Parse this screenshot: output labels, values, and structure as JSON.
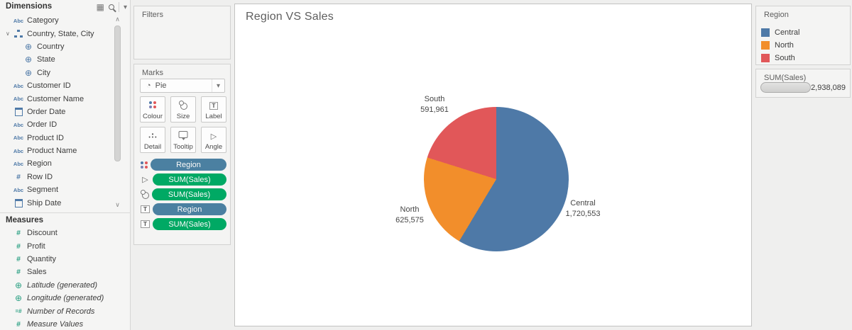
{
  "sidebar": {
    "dimensions_title": "Dimensions",
    "measures_title": "Measures",
    "dimension_items": [
      {
        "icon": "abc",
        "label": "Category"
      },
      {
        "icon": "hierarchy",
        "label": "Country, State, City",
        "expanded": true
      },
      {
        "icon": "globe",
        "label": "Country",
        "indent": 2
      },
      {
        "icon": "globe",
        "label": "State",
        "indent": 2
      },
      {
        "icon": "globe",
        "label": "City",
        "indent": 2
      },
      {
        "icon": "abc",
        "label": "Customer ID"
      },
      {
        "icon": "abc",
        "label": "Customer Name"
      },
      {
        "icon": "calendar",
        "label": "Order Date"
      },
      {
        "icon": "abc",
        "label": "Order ID"
      },
      {
        "icon": "abc",
        "label": "Product ID"
      },
      {
        "icon": "abc",
        "label": "Product Name"
      },
      {
        "icon": "abc",
        "label": "Region"
      },
      {
        "icon": "hash",
        "label": "Row ID"
      },
      {
        "icon": "abc",
        "label": "Segment"
      },
      {
        "icon": "calendar",
        "label": "Ship Date"
      }
    ],
    "measure_items": [
      {
        "icon": "hash",
        "label": "Discount"
      },
      {
        "icon": "hash",
        "label": "Profit"
      },
      {
        "icon": "hash",
        "label": "Quantity"
      },
      {
        "icon": "hash",
        "label": "Sales"
      },
      {
        "icon": "globe",
        "label": "Latitude (generated)",
        "italic": true
      },
      {
        "icon": "globe",
        "label": "Longitude (generated)",
        "italic": true
      },
      {
        "icon": "eqhash",
        "label": "Number of Records",
        "italic": true
      },
      {
        "icon": "hash",
        "label": "Measure Values",
        "italic": true
      }
    ]
  },
  "filters": {
    "title": "Filters"
  },
  "marks": {
    "title": "Marks",
    "mark_type": "Pie",
    "buttons": [
      "Colour",
      "Size",
      "Label",
      "Detail",
      "Tooltip",
      "Angle"
    ],
    "pill_colors": {
      "dimension": "#4b80a1",
      "measure": "#00a964"
    },
    "pills": [
      {
        "icon": "colour",
        "label": "Region",
        "type": "dimension"
      },
      {
        "icon": "angle",
        "label": "SUM(Sales)",
        "type": "measure"
      },
      {
        "icon": "size",
        "label": "SUM(Sales)",
        "type": "measure"
      },
      {
        "icon": "label",
        "label": "Region",
        "type": "dimension"
      },
      {
        "icon": "label",
        "label": "SUM(Sales)",
        "type": "measure"
      }
    ]
  },
  "sheet": {
    "title": "Region VS Sales"
  },
  "chart_data": {
    "type": "pie",
    "title": "Region VS Sales",
    "categories": [
      "Central",
      "North",
      "South"
    ],
    "values": [
      1720553,
      625575,
      591961
    ],
    "value_labels": [
      "1,720,553",
      "625,575",
      "591,961"
    ],
    "colors": [
      "#4e79a7",
      "#f28e2b",
      "#e15759"
    ],
    "total": 2938089,
    "total_label": "2,938,089",
    "start_angle_deg": 0,
    "direction": "clockwise",
    "legend_position": "right"
  },
  "legend": {
    "title": "Region",
    "items": [
      {
        "label": "Central",
        "color": "#4e79a7"
      },
      {
        "label": "North",
        "color": "#f28e2b"
      },
      {
        "label": "South",
        "color": "#e15759"
      }
    ]
  },
  "sum_card": {
    "title": "SUM(Sales)",
    "value": "2,938,089"
  }
}
